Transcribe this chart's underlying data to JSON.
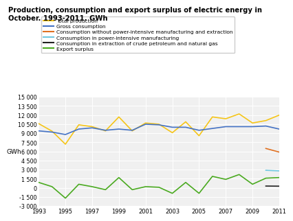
{
  "title": "Production, consumption and export surplus of electric energy in\nOctober. 1993-2011. GWh",
  "ylabel": "GWh",
  "years": [
    1993,
    1994,
    1995,
    1996,
    1997,
    1998,
    1999,
    2000,
    2001,
    2002,
    2003,
    2004,
    2005,
    2006,
    2007,
    2008,
    2009,
    2010,
    2011
  ],
  "total_production": [
    10600,
    9350,
    7200,
    10400,
    10100,
    9400,
    11700,
    9400,
    10700,
    10500,
    9100,
    10900,
    8600,
    11700,
    11400,
    12200,
    10700,
    11100,
    12000
  ],
  "gross_consumption": [
    9400,
    9200,
    8800,
    9700,
    9900,
    9500,
    9700,
    9500,
    10500,
    10400,
    10000,
    10000,
    9500,
    9800,
    10100,
    10100,
    10100,
    10200,
    9700
  ],
  "consumption_without_power": [
    null,
    null,
    null,
    null,
    null,
    null,
    null,
    null,
    null,
    null,
    null,
    null,
    null,
    null,
    null,
    null,
    null,
    6500,
    5900
  ],
  "consumption_power_intensive": [
    null,
    null,
    null,
    null,
    null,
    null,
    null,
    null,
    null,
    null,
    null,
    null,
    null,
    null,
    null,
    null,
    null,
    2900,
    2800
  ],
  "consumption_extraction": [
    null,
    null,
    null,
    null,
    null,
    null,
    null,
    null,
    null,
    null,
    null,
    null,
    null,
    null,
    null,
    null,
    null,
    300,
    280
  ],
  "export_surplus": [
    900,
    200,
    -1700,
    600,
    200,
    -300,
    1700,
    -300,
    200,
    100,
    -900,
    900,
    -900,
    1900,
    1400,
    2200,
    600,
    1600,
    1700
  ],
  "colors": {
    "total_production": "#f5c518",
    "gross_consumption": "#4472c4",
    "consumption_without_power": "#e07020",
    "consumption_power_intensive": "#70c8e0",
    "consumption_extraction": "#222222",
    "export_surplus": "#4aaa20"
  },
  "legend_labels": [
    "Total production",
    "Gross consumption",
    "Consumption without power-intensive manufacturing and extraction",
    "Consumption in power-intensive manufacturing",
    "Consumption in extraction of crude petroleum and natural gas",
    "Export surplus"
  ],
  "ylim": [
    -3000,
    15000
  ],
  "yticks": [
    -3000,
    -1500,
    0,
    1500,
    3000,
    4500,
    6000,
    7500,
    9000,
    10500,
    12000,
    13500,
    15000
  ],
  "ytick_labels": [
    "-3 000",
    "-1 500",
    "0",
    "1 500",
    "3 000",
    "4 500",
    "6 000",
    "7 500",
    "9 000",
    "10 500",
    "12 000",
    "13 500",
    "15 000"
  ],
  "xticks": [
    1993,
    1995,
    1997,
    1999,
    2001,
    2003,
    2005,
    2007,
    2009,
    2011
  ],
  "background_color": "#f0f0f0"
}
